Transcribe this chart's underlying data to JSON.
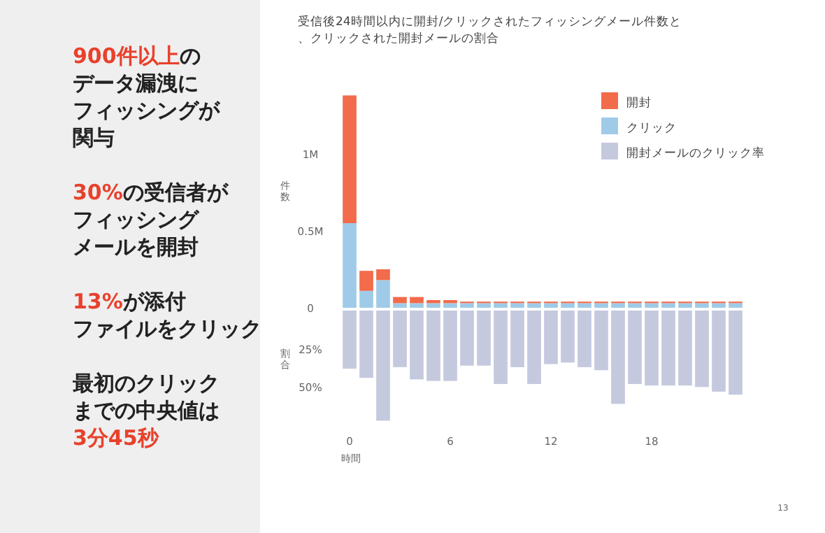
{
  "chart_data": [
    {
      "type": "other",
      "annotations": [
        "900件以上",
        "の",
        "データ漏洩に",
        "フィッシングが",
        "関与"
      ],
      "colors": [
        "#e8412c",
        "#222222",
        "#222222",
        "#222222",
        "#222222"
      ]
    },
    {
      "type": "other",
      "annotations": [
        "30%",
        "の受信者が",
        "フィッシング",
        "メールを開封"
      ],
      "colors": [
        "#e8412c",
        "#222222",
        "#222222",
        "#222222"
      ]
    },
    {
      "type": "other",
      "annotations": [
        "13%",
        "が添付",
        "ファイルをクリック"
      ],
      "colors": [
        "#e8412c",
        "#222222",
        "#222222"
      ]
    },
    {
      "type": "other",
      "annotations": [
        "最初のクリック",
        "までの中央値は",
        "3分45秒"
      ],
      "colors": [
        "#222222",
        "#222222",
        "#e8412c"
      ]
    },
    {
      "type": "bar",
      "title": "受信後24時間以内に開封/クリックされたフィッシングメール件数と、クリックされた開封メールの割合",
      "ylabel": "件数",
      "stacked": true,
      "legend": "top right",
      "tick_labels": "y",
      "x": [
        0,
        1,
        2,
        3,
        4,
        5,
        6,
        7,
        8,
        9,
        10,
        11,
        12,
        13,
        14,
        15,
        16,
        17,
        18,
        19,
        20,
        21,
        22,
        23
      ],
      "xlim": [
        -0.5,
        23.5
      ],
      "ylim": [
        0,
        1.4
      ],
      "yticks": [
        0,
        {
          "value": 0.5,
          "label": "0.5M"
        },
        {
          "value": 1,
          "label": "1M"
        }
      ],
      "series": [
        {
          "name": "クリック",
          "color": "#9fcbe8",
          "values": [
            0.55,
            0.11,
            0.18,
            0.03,
            0.03,
            0.03,
            0.03,
            0.03,
            0.03,
            0.03,
            0.03,
            0.03,
            0.03,
            0.03,
            0.03,
            0.03,
            0.03,
            0.03,
            0.03,
            0.03,
            0.03,
            0.03,
            0.03,
            0.03
          ]
        },
        {
          "name": "開封",
          "color": "#f26b4b",
          "values": [
            0.83,
            0.13,
            0.07,
            0.04,
            0.04,
            0.02,
            0.02,
            0.01,
            0.01,
            0.01,
            0.01,
            0.01,
            0.01,
            0.01,
            0.01,
            0.01,
            0.01,
            0.01,
            0.01,
            0.01,
            0.01,
            0.01,
            0.01,
            0.01
          ]
        }
      ]
    },
    {
      "type": "bar",
      "ylabel": "割合",
      "xlabel": "時間",
      "legend": "top right",
      "annotations": [
        "13"
      ],
      "x": [
        0,
        1,
        2,
        3,
        4,
        5,
        6,
        7,
        8,
        9,
        10,
        11,
        12,
        13,
        14,
        15,
        16,
        17,
        18,
        19,
        20,
        21,
        22,
        23
      ],
      "xlim": [
        -0.5,
        23.5
      ],
      "ylim": [
        75,
        0
      ],
      "xticks": [
        0,
        6,
        12,
        18
      ],
      "yticks": [
        {
          "value": 25,
          "label": "25%"
        },
        {
          "value": 50,
          "label": "50%"
        }
      ],
      "series": [
        {
          "name": "開封メールのクリック率",
          "color": "#c5c9de",
          "values": [
            38,
            44,
            72,
            37,
            45,
            46,
            46,
            36,
            36,
            48,
            37,
            48,
            35,
            34,
            37,
            39,
            61,
            48,
            49,
            49,
            49,
            50,
            53,
            55
          ]
        }
      ]
    }
  ]
}
